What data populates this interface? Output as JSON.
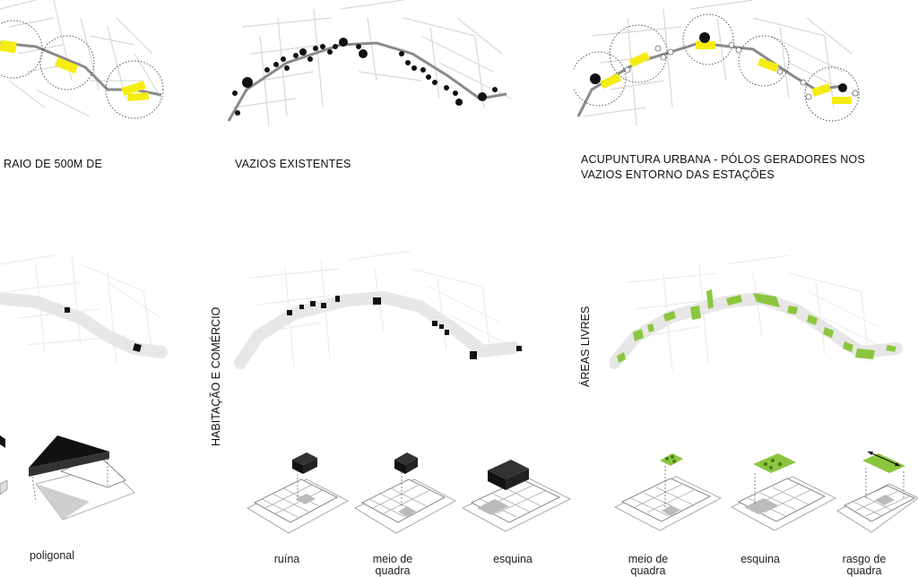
{
  "captions": {
    "top_left": "RAIO DE 500M DE",
    "top_middle": "VAZIOS EXISTENTES",
    "top_right_line1": "ACUPUNTURA URBANA - PÓLOS GERADORES NOS",
    "top_right_line2": "VAZIOS ENTORNO DAS ESTAÇÕES"
  },
  "vertical_labels": {
    "middle": "HABITAÇÃO E COMÉRCIO",
    "right": "ÁREAS LIVRES"
  },
  "block_labels": {
    "left": "poligonal",
    "middle_1": "ruína",
    "middle_2": "meio de quadra",
    "middle_3": "esquina",
    "right_1": "meio de quadra",
    "right_2": "esquina",
    "right_3": "rasgo de quadra"
  },
  "colors": {
    "station_yellow": "#f5ec12",
    "void_black": "#111111",
    "green_area": "#8cc63f",
    "route_gray": "#8a8a8a"
  }
}
